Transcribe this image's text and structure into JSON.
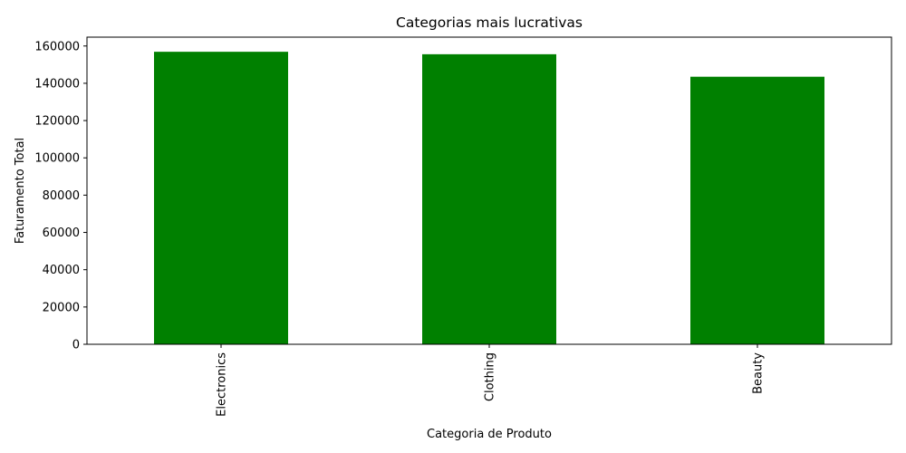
{
  "chart_data": {
    "type": "bar",
    "title": "Categorias mais lucrativas",
    "xlabel": "Categoria de Produto",
    "ylabel": "Faturamento Total",
    "categories": [
      "Electronics",
      "Clothing",
      "Beauty"
    ],
    "values": [
      156905,
      155580,
      143515
    ],
    "ylim": [
      0,
      160000
    ],
    "yticks": [
      0,
      20000,
      40000,
      60000,
      80000,
      100000,
      120000,
      140000,
      160000
    ],
    "ytick_labels": [
      "0",
      "20000",
      "40000",
      "60000",
      "80000",
      "100000",
      "120000",
      "140000",
      "160000"
    ],
    "bar_color": "#008000",
    "grid": false,
    "xtick_rotation": 90
  }
}
